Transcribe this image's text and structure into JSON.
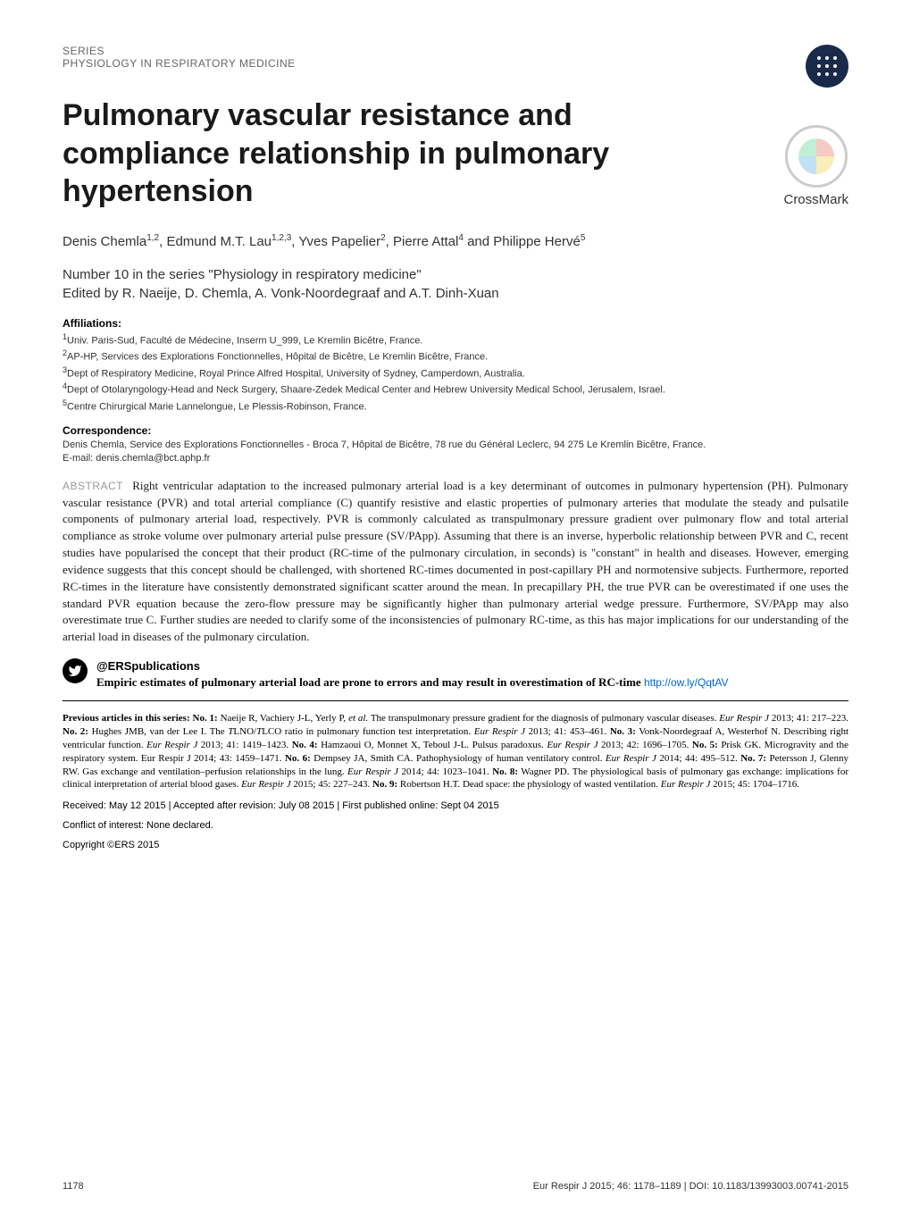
{
  "header": {
    "line1": "SERIES",
    "line2": "PHYSIOLOGY IN RESPIRATORY MEDICINE"
  },
  "crossmark_label": "CrossMark",
  "title": "Pulmonary vascular resistance and compliance relationship in pulmonary hypertension",
  "authors_html": "Denis Chemla<sup>1,2</sup>, Edmund M.T. Lau<sup>1,2,3</sup>, Yves Papelier<sup>2</sup>, Pierre Attal<sup>4</sup> and Philippe Hervé<sup>5</sup>",
  "series_number": "Number 10 in the series \"Physiology in respiratory medicine\"",
  "series_editors": "Edited by R. Naeije, D. Chemla, A. Vonk-Noordegraaf and A.T. Dinh-Xuan",
  "affiliations_label": "Affiliations:",
  "affiliations": [
    "<sup>1</sup>Univ. Paris-Sud, Faculté de Médecine, Inserm U_999, Le Kremlin Bicêtre, France.",
    "<sup>2</sup>AP-HP, Services des Explorations Fonctionnelles, Hôpital de Bicêtre, Le Kremlin Bicêtre, France.",
    "<sup>3</sup>Dept of Respiratory Medicine, Royal Prince Alfred Hospital, University of Sydney, Camperdown, Australia.",
    "<sup>4</sup>Dept of Otolaryngology-Head and Neck Surgery, Shaare-Zedek Medical Center and Hebrew University Medical School, Jerusalem, Israel.",
    "<sup>5</sup>Centre Chirurgical Marie Lannelongue, Le Plessis-Robinson, France."
  ],
  "correspondence_label": "Correspondence:",
  "correspondence_text": "Denis Chemla, Service des Explorations Fonctionnelles - Broca 7, Hôpital de Bicêtre, 78 rue du Général Leclerc, 94 275 Le Kremlin Bicêtre, France.",
  "correspondence_email": "E-mail: denis.chemla@bct.aphp.fr",
  "abstract_label": "ABSTRACT",
  "abstract_text": "Right ventricular adaptation to the increased pulmonary arterial load is a key determinant of outcomes in pulmonary hypertension (PH). Pulmonary vascular resistance (PVR) and total arterial compliance (C) quantify resistive and elastic properties of pulmonary arteries that modulate the steady and pulsatile components of pulmonary arterial load, respectively. PVR is commonly calculated as transpulmonary pressure gradient over pulmonary flow and total arterial compliance as stroke volume over pulmonary arterial pulse pressure (SV/PApp). Assuming that there is an inverse, hyperbolic relationship between PVR and C, recent studies have popularised the concept that their product (RC-time of the pulmonary circulation, in seconds) is \"constant\" in health and diseases. However, emerging evidence suggests that this concept should be challenged, with shortened RC-times documented in post-capillary PH and normotensive subjects. Furthermore, reported RC-times in the literature have consistently demonstrated significant scatter around the mean. In precapillary PH, the true PVR can be overestimated if one uses the standard PVR equation because the zero-flow pressure may be significantly higher than pulmonary arterial wedge pressure. Furthermore, SV/PApp may also overestimate true C. Further studies are needed to clarify some of the inconsistencies of pulmonary RC-time, as this has major implications for our understanding of the arterial load in diseases of the pulmonary circulation.",
  "tweet": {
    "handle": "@ERSpublications",
    "summary": "Empiric estimates of pulmonary arterial load are prone to errors and may result in overestimation of RC-time",
    "link": "http://ow.ly/QqtAV"
  },
  "previous_label": "Previous articles in this series:",
  "previous_items": [
    {
      "no": "No. 1:",
      "text": "Naeije R, Vachiery J-L, Yerly P, <i>et al.</i> The transpulmonary pressure gradient for the diagnosis of pulmonary vascular diseases. <i>Eur Respir J</i> 2013; 41: 217–223."
    },
    {
      "no": "No. 2:",
      "text": "Hughes JMB, van der Lee I. The <i>T</i>LNO/<i>T</i>LCO ratio in pulmonary function test interpretation. <i>Eur Respir J</i> 2013; 41: 453–461."
    },
    {
      "no": "No. 3:",
      "text": "Vonk-Noordegraaf A, Westerhof N. Describing right ventricular function. <i>Eur Respir J</i> 2013; 41: 1419–1423."
    },
    {
      "no": "No. 4:",
      "text": "Hamzaoui O, Monnet X, Teboul J-L. Pulsus paradoxus. <i>Eur Respir J</i> 2013; 42: 1696–1705."
    },
    {
      "no": "No. 5:",
      "text": "Prisk GK. Microgravity and the respiratory system. Eur Respir J 2014; 43: 1459–1471."
    },
    {
      "no": "No. 6:",
      "text": "Dempsey JA, Smith CA. Pathophysiology of human ventilatory control. <i>Eur Respir J</i> 2014; 44: 495–512."
    },
    {
      "no": "No. 7:",
      "text": "Petersson J, Glenny RW. Gas exchange and ventilation–perfusion relationships in the lung. <i>Eur Respir J</i> 2014; 44: 1023–1041."
    },
    {
      "no": "No. 8:",
      "text": "Wagner PD. The physiological basis of pulmonary gas exchange: implications for clinical interpretation of arterial blood gases. <i>Eur Respir J</i> 2015; 45: 227–243."
    },
    {
      "no": "No. 9:",
      "text": "Robertson H.T. Dead space: the physiology of wasted ventilation. <i>Eur Respir J</i> 2015; 45: 1704–1716."
    }
  ],
  "received": "Received: May 12 2015 | Accepted after revision: July 08 2015 | First published online: Sept 04 2015",
  "conflict": "Conflict of interest: None declared.",
  "copyright": "Copyright ©ERS 2015",
  "footer": {
    "page": "1178",
    "citation": "Eur Respir J 2015; 46: 1178–1189  |  DOI: 10.1183/13993003.00741-2015"
  },
  "colors": {
    "logo_bg": "#1a2a4a",
    "text_secondary": "#666666",
    "abstract_label": "#999999",
    "link": "#0066cc"
  }
}
